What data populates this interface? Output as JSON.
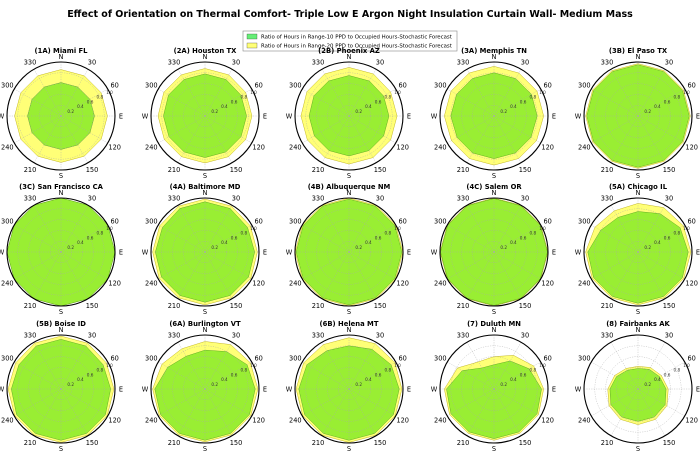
{
  "chart_data": {
    "type": "polar-area",
    "title": "Effect of Orientation on Thermal Comfort- Triple Low E Argon Night Insulation Curtain Wall- Medium Mass",
    "legend": [
      {
        "label": "Ratio of Hours in Range-10 PPD to Occupied Hours-Stochastic Forecast",
        "color": "#66ee77"
      },
      {
        "label": "Ratio of Hours in Range-20 PPD to Occupied Hours-Stochastic Forecast",
        "color": "#ffff77"
      }
    ],
    "legend_position": "top-center",
    "colors": {
      "overlap": "#99ee33",
      "ring_major": "#000000",
      "ring_minor": "#aaaaaa"
    },
    "compass_labels": {
      "N": "N",
      "E": "E",
      "S": "S",
      "W": "W"
    },
    "angle_ticks": [
      "30",
      "60",
      "120",
      "150",
      "210",
      "240",
      "300",
      "330"
    ],
    "radial_ticks": [
      "0.2",
      "0.4",
      "0.6",
      "0.8",
      "1.0"
    ],
    "radial_range": [
      0,
      1
    ],
    "orientations_deg": [
      0,
      30,
      60,
      90,
      120,
      150,
      180,
      210,
      240,
      270,
      300,
      330
    ],
    "panels": [
      {
        "title": "(1A) Miami FL",
        "ppd10": [
          0.62,
          0.62,
          0.62,
          0.62,
          0.62,
          0.62,
          0.62,
          0.62,
          0.62,
          0.62,
          0.62,
          0.62
        ],
        "ppd20": [
          0.86,
          0.86,
          0.86,
          0.86,
          0.86,
          0.86,
          0.86,
          0.86,
          0.86,
          0.86,
          0.86,
          0.86
        ]
      },
      {
        "title": "(2A) Houston TX",
        "ppd10": [
          0.78,
          0.78,
          0.77,
          0.77,
          0.77,
          0.77,
          0.77,
          0.77,
          0.77,
          0.77,
          0.78,
          0.78
        ],
        "ppd20": [
          0.88,
          0.88,
          0.87,
          0.87,
          0.87,
          0.87,
          0.87,
          0.87,
          0.87,
          0.87,
          0.88,
          0.88
        ]
      },
      {
        "title": "(2B) Phoenix AZ",
        "ppd10": [
          0.75,
          0.75,
          0.74,
          0.74,
          0.74,
          0.74,
          0.74,
          0.74,
          0.74,
          0.74,
          0.75,
          0.75
        ],
        "ppd20": [
          0.9,
          0.9,
          0.89,
          0.89,
          0.89,
          0.89,
          0.89,
          0.89,
          0.89,
          0.89,
          0.9,
          0.9
        ]
      },
      {
        "title": "(3A) Memphis TN",
        "ppd10": [
          0.8,
          0.8,
          0.8,
          0.8,
          0.79,
          0.79,
          0.79,
          0.79,
          0.79,
          0.8,
          0.8,
          0.8
        ],
        "ppd20": [
          0.92,
          0.92,
          0.92,
          0.92,
          0.91,
          0.91,
          0.91,
          0.91,
          0.91,
          0.92,
          0.92,
          0.92
        ]
      },
      {
        "title": "(3B) El Paso TX",
        "ppd10": [
          0.95,
          0.95,
          0.95,
          0.95,
          0.95,
          0.95,
          0.95,
          0.95,
          0.95,
          0.95,
          0.95,
          0.95
        ],
        "ppd20": [
          0.97,
          0.97,
          0.97,
          0.97,
          0.97,
          0.97,
          0.97,
          0.97,
          0.97,
          0.97,
          0.97,
          0.97
        ]
      },
      {
        "title": "(3C) San Francisco CA",
        "ppd10": [
          1.0,
          1.0,
          1.0,
          1.0,
          1.0,
          1.0,
          1.0,
          1.0,
          1.0,
          1.0,
          1.0,
          1.0
        ],
        "ppd20": [
          1.0,
          1.0,
          1.0,
          1.0,
          1.0,
          1.0,
          1.0,
          1.0,
          1.0,
          1.0,
          1.0,
          1.0
        ]
      },
      {
        "title": "(4A) Baltimore MD",
        "ppd10": [
          0.93,
          0.93,
          0.91,
          0.92,
          0.93,
          0.93,
          0.93,
          0.93,
          0.93,
          0.92,
          0.91,
          0.93
        ],
        "ppd20": [
          0.98,
          0.98,
          0.97,
          0.97,
          0.98,
          0.98,
          0.98,
          0.98,
          0.98,
          0.97,
          0.97,
          0.98
        ]
      },
      {
        "title": "(4B) Albuquerque NM",
        "ppd10": [
          0.98,
          0.98,
          0.98,
          0.98,
          0.98,
          0.98,
          0.98,
          0.98,
          0.98,
          0.98,
          0.98,
          0.98
        ],
        "ppd20": [
          1.0,
          1.0,
          1.0,
          1.0,
          1.0,
          1.0,
          1.0,
          1.0,
          1.0,
          1.0,
          1.0,
          1.0
        ]
      },
      {
        "title": "(4C) Salem OR",
        "ppd10": [
          0.99,
          0.99,
          0.99,
          0.99,
          0.99,
          0.99,
          0.99,
          0.99,
          0.99,
          0.99,
          0.99,
          0.99
        ],
        "ppd20": [
          1.0,
          1.0,
          1.0,
          1.0,
          1.0,
          1.0,
          1.0,
          1.0,
          1.0,
          1.0,
          1.0,
          1.0
        ]
      },
      {
        "title": "(5A) Chicago IL",
        "ppd10": [
          0.75,
          0.82,
          0.9,
          0.93,
          0.95,
          0.95,
          0.95,
          0.95,
          0.95,
          0.93,
          0.8,
          0.74
        ],
        "ppd20": [
          0.9,
          0.95,
          0.97,
          0.98,
          0.98,
          0.98,
          0.98,
          0.98,
          0.98,
          0.97,
          0.92,
          0.88
        ]
      },
      {
        "title": "(5B) Boise ID",
        "ppd10": [
          0.92,
          0.92,
          0.9,
          0.92,
          0.95,
          0.95,
          0.95,
          0.95,
          0.95,
          0.92,
          0.9,
          0.92
        ],
        "ppd20": [
          0.98,
          0.98,
          0.97,
          0.98,
          0.99,
          0.99,
          0.99,
          0.99,
          0.99,
          0.98,
          0.97,
          0.98
        ]
      },
      {
        "title": "(6A) Burlington VT",
        "ppd10": [
          0.72,
          0.8,
          0.9,
          0.93,
          0.95,
          0.95,
          0.95,
          0.95,
          0.95,
          0.93,
          0.8,
          0.7
        ],
        "ppd20": [
          0.88,
          0.95,
          0.97,
          0.98,
          0.98,
          0.98,
          0.98,
          0.98,
          0.98,
          0.97,
          0.92,
          0.86
        ]
      },
      {
        "title": "(6B) Helena MT",
        "ppd10": [
          0.8,
          0.85,
          0.9,
          0.93,
          0.95,
          0.95,
          0.95,
          0.95,
          0.95,
          0.93,
          0.9,
          0.82
        ],
        "ppd20": [
          0.95,
          0.97,
          0.98,
          0.98,
          0.99,
          0.99,
          0.99,
          0.99,
          0.99,
          0.98,
          0.97,
          0.95
        ]
      },
      {
        "title": "(7) Duluth MN",
        "ppd10": [
          0.45,
          0.6,
          0.75,
          0.88,
          0.92,
          0.92,
          0.92,
          0.92,
          0.92,
          0.88,
          0.68,
          0.45
        ],
        "ppd20": [
          0.6,
          0.72,
          0.85,
          0.92,
          0.95,
          0.95,
          0.95,
          0.95,
          0.95,
          0.92,
          0.78,
          0.58
        ]
      },
      {
        "title": "(8) Fairbanks AK",
        "ppd10": [
          0.38,
          0.42,
          0.46,
          0.52,
          0.58,
          0.6,
          0.6,
          0.6,
          0.58,
          0.52,
          0.46,
          0.4
        ],
        "ppd20": [
          0.42,
          0.46,
          0.5,
          0.56,
          0.62,
          0.65,
          0.66,
          0.65,
          0.62,
          0.56,
          0.5,
          0.44
        ]
      }
    ]
  }
}
